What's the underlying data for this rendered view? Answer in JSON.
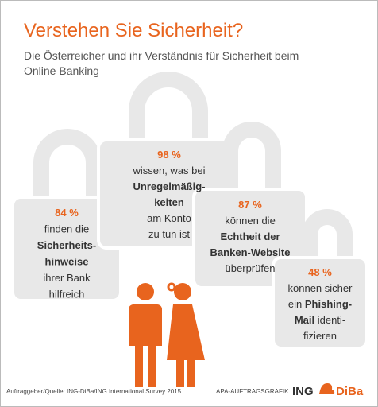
{
  "header": {
    "title": "Verstehen Sie Sicherheit?",
    "subtitle_lines": [
      "Die Österreicher und ihr Verständnis für Sicherheit beim",
      "Online Banking"
    ]
  },
  "locks": [
    {
      "percent": "84 %",
      "lines": [
        [
          {
            "text": "finden die",
            "bold": false
          }
        ],
        [
          {
            "text": "Sicherheits-",
            "bold": true
          }
        ],
        [
          {
            "text": "hinweise",
            "bold": true
          }
        ],
        [
          {
            "text": "ihrer Bank",
            "bold": false
          }
        ],
        [
          {
            "text": "hilfreich",
            "bold": false
          }
        ]
      ]
    },
    {
      "percent": "98 %",
      "lines": [
        [
          {
            "text": "wissen, was bei",
            "bold": false
          }
        ],
        [
          {
            "text": "Unregelmäßig-",
            "bold": true
          }
        ],
        [
          {
            "text": "keiten",
            "bold": true
          }
        ],
        [
          {
            "text": "am Konto",
            "bold": false
          }
        ],
        [
          {
            "text": "zu tun ist",
            "bold": false
          }
        ]
      ]
    },
    {
      "percent": "87 %",
      "lines": [
        [
          {
            "text": "können die",
            "bold": false
          }
        ],
        [
          {
            "text": "Echtheit der",
            "bold": true
          }
        ],
        [
          {
            "text": "Banken-Website",
            "bold": true
          }
        ],
        [
          {
            "text": "überprüfen",
            "bold": false
          }
        ]
      ]
    },
    {
      "percent": "48 %",
      "lines": [
        [
          {
            "text": "können sicher",
            "bold": false
          }
        ],
        [
          {
            "text": "ein ",
            "bold": false
          },
          {
            "text": "Phishing-",
            "bold": true
          }
        ],
        [
          {
            "text": "Mail",
            "bold": true
          },
          {
            "text": " identi-",
            "bold": false
          }
        ],
        [
          {
            "text": "fizieren",
            "bold": false
          }
        ]
      ]
    }
  ],
  "footer": {
    "source": "Auftraggeber/Quelle: ING-DiBa/ING International Survey 2015",
    "credit": "APA-AUFTRAGSGRAFIK",
    "logo_left": "ING",
    "logo_right": "DiBa"
  }
}
